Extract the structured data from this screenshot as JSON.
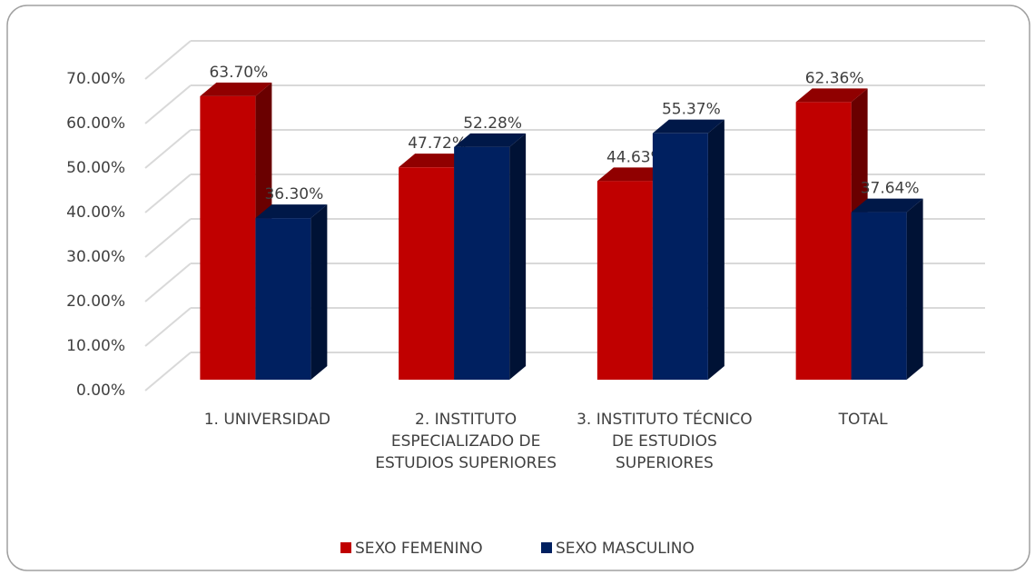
{
  "chart_data": {
    "type": "bar3d",
    "categories": [
      "1. UNIVERSIDAD",
      "2. INSTITUTO ESPECIALIZADO DE ESTUDIOS SUPERIORES",
      "3. INSTITUTO TÉCNICO DE ESTUDIOS SUPERIORES",
      "TOTAL"
    ],
    "series": [
      {
        "name": "SEXO FEMENINO",
        "color": "#c00000",
        "values": [
          63.7,
          47.72,
          44.63,
          62.36
        ],
        "value_labels": [
          "63.70%",
          "47.72%",
          "44.63%",
          "62.36%"
        ]
      },
      {
        "name": "SEXO MASCULINO",
        "color": "#002060",
        "values": [
          36.3,
          52.28,
          55.37,
          37.64
        ],
        "value_labels": [
          "36.30%",
          "52.28%",
          "55.37%",
          "37.64%"
        ]
      }
    ],
    "ylim": [
      0,
      70
    ],
    "yticks": [
      {
        "value": 0,
        "label": "0.00%"
      },
      {
        "value": 10,
        "label": "10.00%"
      },
      {
        "value": 20,
        "label": "20.00%"
      },
      {
        "value": 30,
        "label": "30.00%"
      },
      {
        "value": 40,
        "label": "40.00%"
      },
      {
        "value": 50,
        "label": "50.00%"
      },
      {
        "value": 60,
        "label": "60.00%"
      },
      {
        "value": 70,
        "label": "70.00%"
      }
    ],
    "grid": true,
    "legend": "bottom"
  }
}
